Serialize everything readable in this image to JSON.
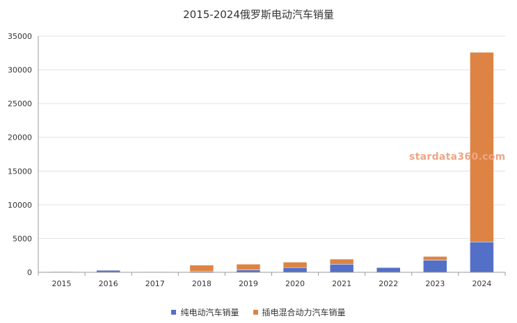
{
  "chart_data": {
    "type": "bar",
    "stacked": true,
    "title": "2015-2024俄罗斯电动汽车销量",
    "categories": [
      "2015",
      "2016",
      "2017",
      "2018",
      "2019",
      "2020",
      "2021",
      "2022",
      "2023",
      "2024"
    ],
    "series": [
      {
        "name": "纯电动汽车销量",
        "color": "#5470c6",
        "values": [
          100,
          300,
          90,
          140,
          350,
          700,
          1200,
          700,
          1800,
          4500
        ]
      },
      {
        "name": "插电混合动力汽车销量",
        "color": "#dd8444",
        "values": [
          20,
          20,
          10,
          920,
          850,
          800,
          750,
          0,
          550,
          28100
        ]
      }
    ],
    "ylim": [
      0,
      35000
    ],
    "yticks": [
      0,
      5000,
      10000,
      15000,
      20000,
      25000,
      30000,
      35000
    ],
    "grid": true,
    "legend": "bottom"
  },
  "watermark": "stardata360.com"
}
